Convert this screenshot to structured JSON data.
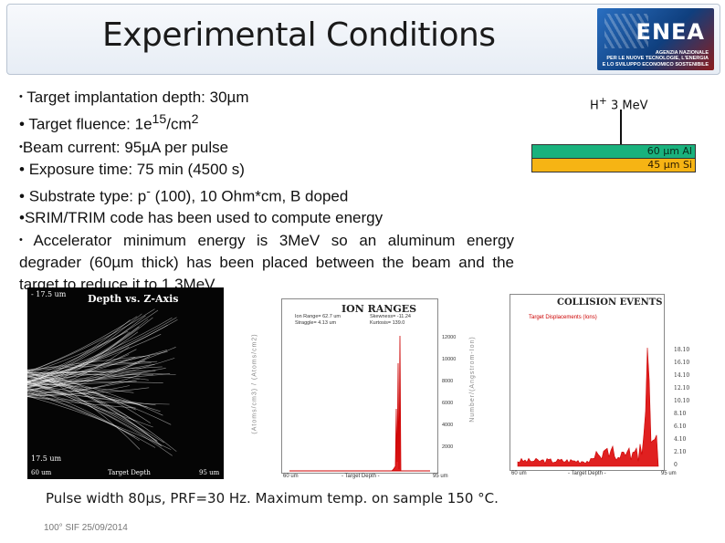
{
  "title": "Experimental Conditions",
  "logo": {
    "mark": "ENEA",
    "caption": [
      "AGENZIA NAZIONALE",
      "PER LE NUOVE TECNOLOGIE, L'ENERGIA",
      "E LO SVILUPPO ECONOMICO SOSTENIBILE"
    ]
  },
  "bullets": [
    {
      "marker": "•",
      "text": "Target implantation depth: 30µm"
    },
    {
      "marker": "•",
      "text": "Target fluence: 1e",
      "sup": "15",
      "tail": "/cm",
      "sup2": "2"
    },
    {
      "marker": "•",
      "text": "Beam current: 95µA per pulse"
    },
    {
      "marker": "•",
      "text": "Exposure time: 75 min (4500 s)"
    },
    {
      "marker": "•",
      "text": "Substrate type: p",
      "sup": "-",
      "tail": " (100), 10 Ohm*cm, B doped"
    },
    {
      "marker": "•",
      "text": "SRIM/TRIM code has been used to compute energy"
    },
    {
      "marker": "•",
      "text": " Accelerator minimum energy is 3MeV so an aluminum energy degrader (60µm thick) has been placed between the beam and the target to reduce it to 1.3MeV"
    }
  ],
  "beam": {
    "ion": "H",
    "charge": "+",
    "energy": "3 MeV"
  },
  "layers": {
    "al": "60 µm Al",
    "si": "45 µm Si"
  },
  "depth_plot": {
    "title": "Depth vs. Z-Axis",
    "top_left": "- 17.5 um",
    "bottom_left": "17.5 um",
    "x_min": "60 um",
    "x_label": "Target Depth",
    "x_max": "95 um"
  },
  "ion_ranges": {
    "title": "ION RANGES",
    "stats_left": [
      "Ion Range= 62.7 um",
      "Straggle= 4.13 um"
    ],
    "stats_right": [
      "Skewness= -11.24",
      "Kurtosis= 139.0"
    ],
    "ylabel": "(Atoms/cm3) / (Atoms/cm2)",
    "y_ticks": [
      "12000",
      "10000",
      "8000",
      "6000",
      "4000",
      "2000"
    ],
    "x_min": "60 um",
    "x_label": "- Target Depth -",
    "x_max": "95 um"
  },
  "collision_events": {
    "title": "COLLISION EVENTS",
    "subtitle": "Target Displacements (Ions)",
    "ylabel": "Number/(Angstrom-Ion)",
    "y_ticks": [
      "18.10",
      "16.10",
      "14.10",
      "12.10",
      "10.10",
      "8.10",
      "6.10",
      "4.10",
      "2.10",
      "0"
    ],
    "x_min": "60 um",
    "x_label": "- Target Depth -",
    "x_max": "95 um"
  },
  "caption": "Pulse width 80µs, PRF=30 Hz. Maximum temp. on sample 150 °C.",
  "footer": "100° SIF 25/09/2014"
}
